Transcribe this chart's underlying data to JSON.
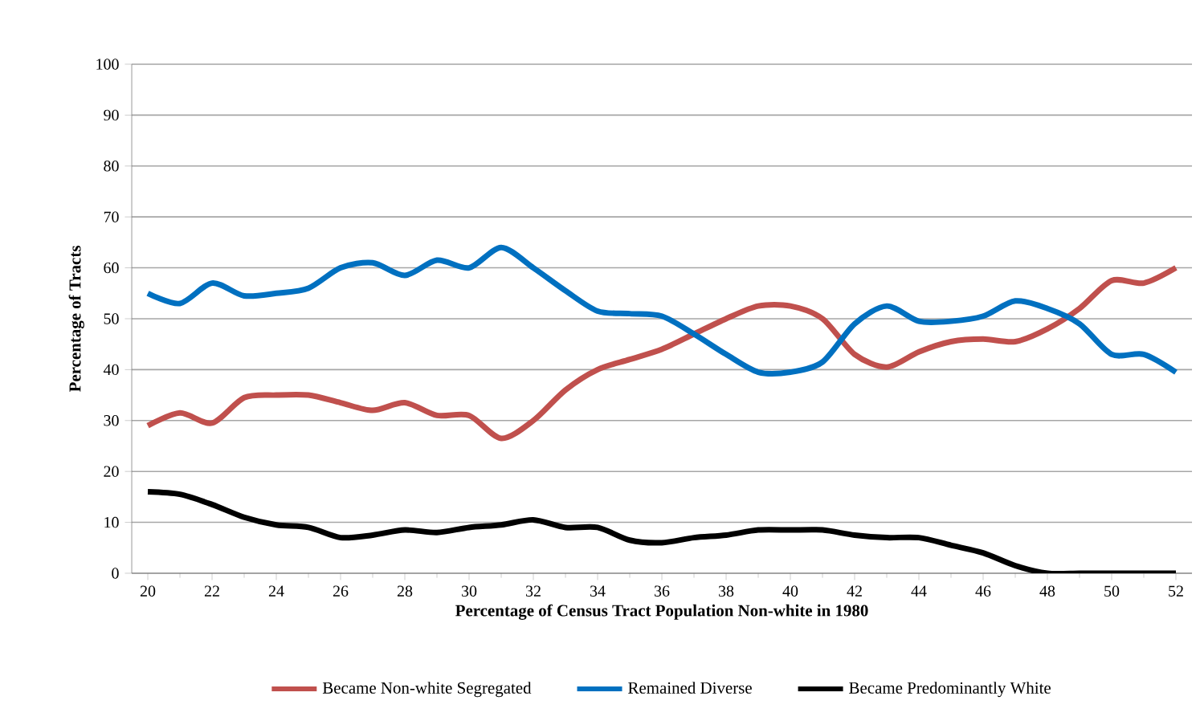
{
  "chart_data": {
    "type": "line",
    "xlabel": "Percentage of Census Tract Population Non-white in 1980",
    "ylabel": "Percentage of Tracts",
    "x": [
      20,
      21,
      22,
      23,
      24,
      25,
      26,
      27,
      28,
      29,
      30,
      31,
      32,
      33,
      34,
      35,
      36,
      37,
      38,
      39,
      40,
      41,
      42,
      43,
      44,
      45,
      46,
      47,
      48,
      49,
      50,
      51,
      52
    ],
    "series": [
      {
        "name": "Became Non-white Segregated",
        "color": "#c0504d",
        "values": [
          29,
          31.5,
          29.5,
          34.5,
          35,
          35,
          33.5,
          32,
          33.5,
          31,
          31,
          26.5,
          30,
          36,
          40,
          42,
          44,
          47,
          50,
          52.5,
          52.5,
          50,
          43,
          40.5,
          43.5,
          45.5,
          46,
          45.5,
          48,
          52,
          57.5,
          57,
          60
        ]
      },
      {
        "name": "Remained Diverse",
        "color": "#0070c0",
        "values": [
          55,
          53,
          57,
          54.5,
          55,
          56,
          60,
          61,
          58.5,
          61.5,
          60,
          64,
          60,
          55.5,
          51.5,
          51,
          50.5,
          47,
          43,
          39.5,
          39.5,
          41.5,
          49,
          52.5,
          49.5,
          49.5,
          50.5,
          53.5,
          52,
          49,
          43,
          43,
          39.5
        ]
      },
      {
        "name": "Became Predominantly White",
        "color": "#000000",
        "values": [
          16,
          15.5,
          13.5,
          11,
          9.5,
          9,
          7,
          7.5,
          8.5,
          8,
          9,
          9.5,
          10.5,
          9,
          9,
          6.5,
          6,
          7,
          7.5,
          8.5,
          8.5,
          8.5,
          7.5,
          7,
          7,
          5.5,
          4,
          1.5,
          0,
          0,
          0,
          0,
          0
        ]
      }
    ],
    "xlim": [
      19.5,
      52.5
    ],
    "xticks": [
      20,
      22,
      24,
      26,
      28,
      30,
      32,
      34,
      36,
      38,
      40,
      42,
      44,
      46,
      48,
      50,
      52
    ],
    "ylim": [
      0,
      100
    ],
    "yticks": [
      0,
      10,
      20,
      30,
      40,
      50,
      60,
      70,
      80,
      90,
      100
    ],
    "grid": "y",
    "legend": "bottom",
    "line_style": "solid",
    "marker": "none"
  }
}
